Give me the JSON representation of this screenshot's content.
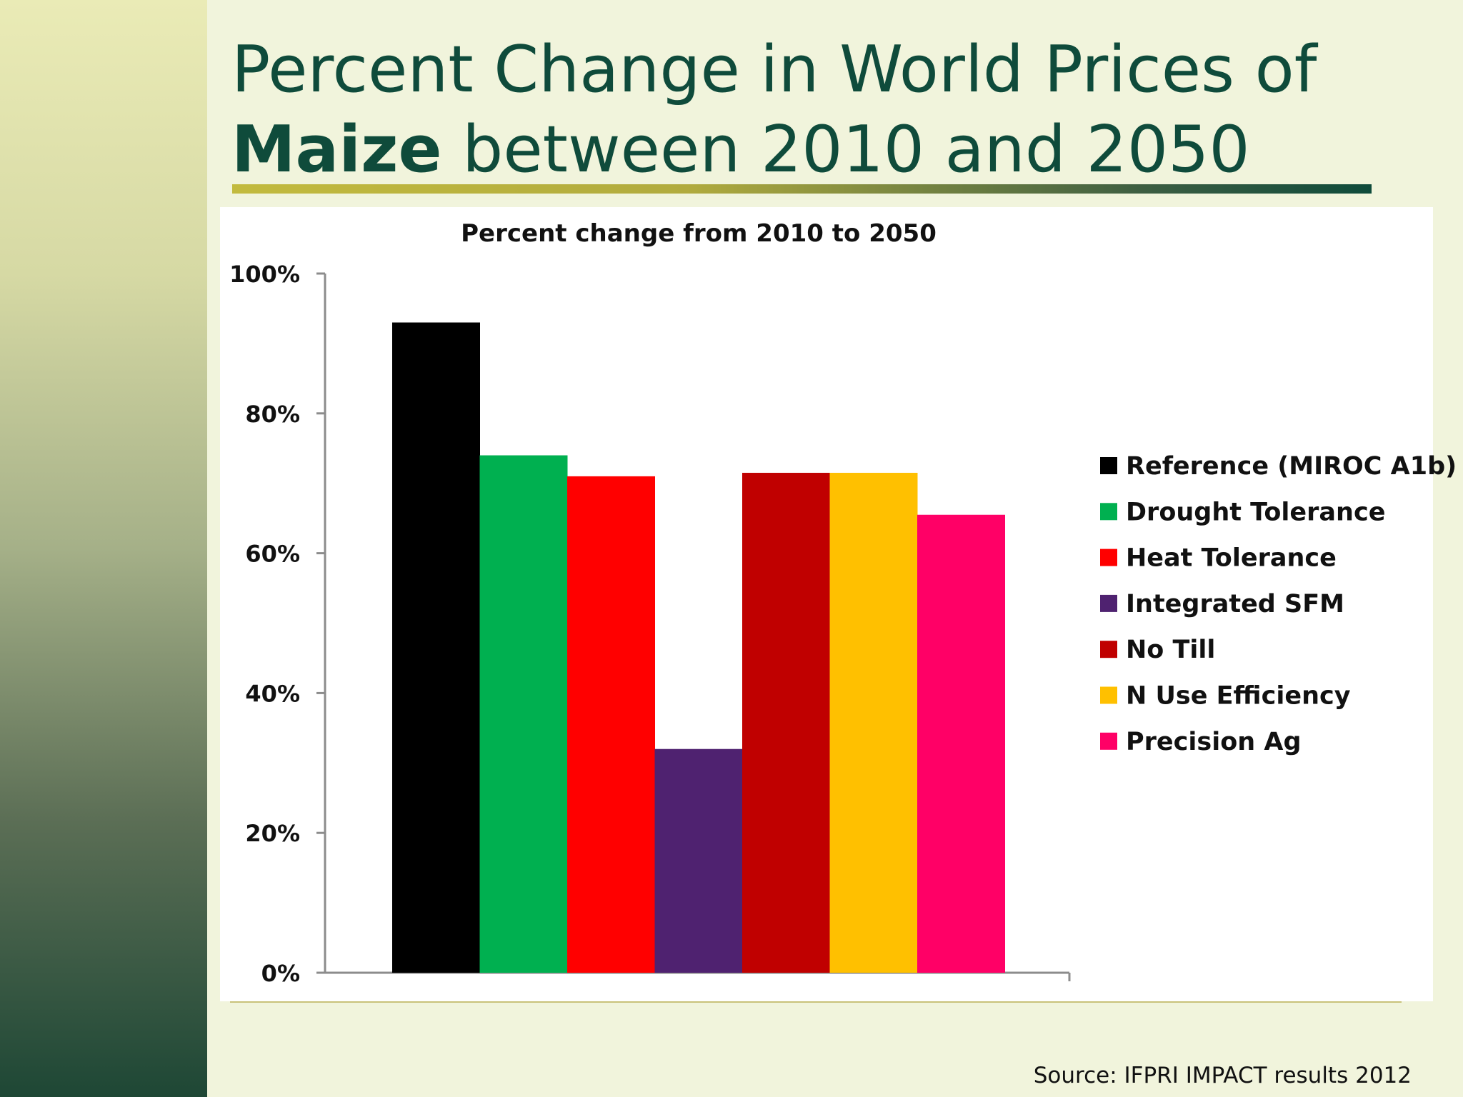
{
  "slide": {
    "title_line1": "Percent Change in World Prices of",
    "title_bold": "Maize",
    "title_line2_rest": " between 2010 and 2050",
    "source": "Source: IFPRI IMPACT results 2012"
  },
  "chart_data": {
    "type": "bar",
    "title": "Percent change from 2010 to 2050",
    "xlabel": "",
    "ylabel": "",
    "ylim": [
      0,
      100
    ],
    "yticks": [
      "0%",
      "20%",
      "40%",
      "60%",
      "80%",
      "100%"
    ],
    "grid": false,
    "legend_position": "right",
    "series": [
      {
        "name": "Reference (MIROC A1b)",
        "value": 93,
        "color": "#000000"
      },
      {
        "name": "Drought Tolerance",
        "value": 74,
        "color": "#00b050"
      },
      {
        "name": "Heat Tolerance",
        "value": 71,
        "color": "#ff0000"
      },
      {
        "name": "Integrated SFM",
        "value": 32,
        "color": "#4f2270"
      },
      {
        "name": "No Till",
        "value": 71.5,
        "color": "#c00000"
      },
      {
        "name": "N Use Efficiency",
        "value": 71.5,
        "color": "#ffc000"
      },
      {
        "name": "Precision Ag",
        "value": 65.5,
        "color": "#ff0066"
      }
    ]
  }
}
